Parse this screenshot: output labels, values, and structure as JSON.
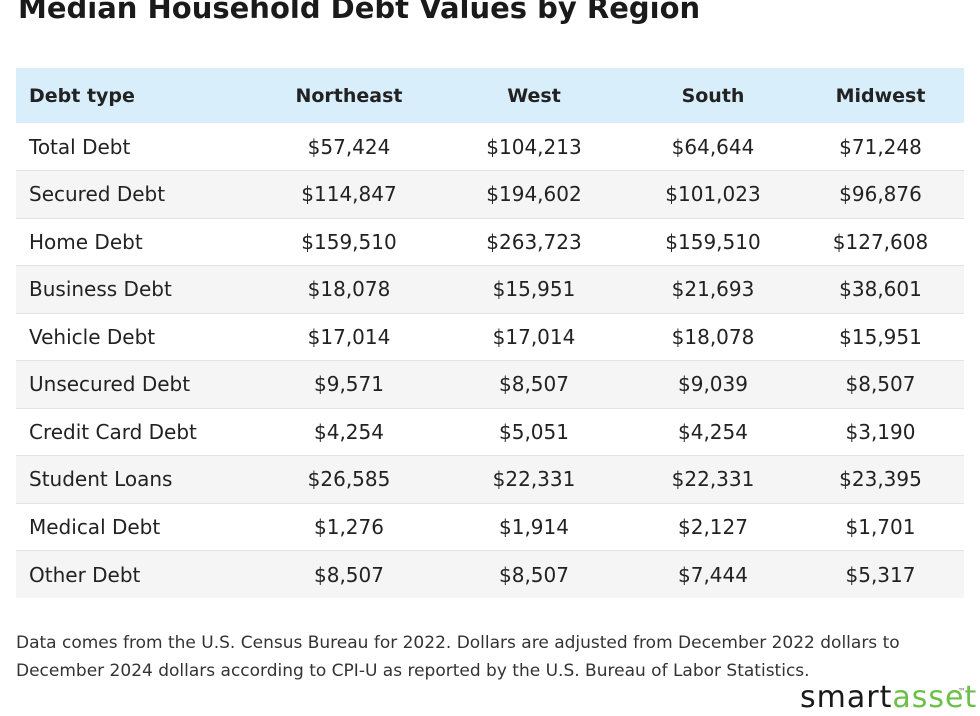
{
  "chart_data": {
    "type": "table",
    "title": "Median Household Debt Values by Region",
    "columns": [
      "Debt type",
      "Northeast",
      "West",
      "South",
      "Midwest"
    ],
    "rows": [
      [
        "Total Debt",
        "$57,424",
        "$104,213",
        "$64,644",
        "$71,248"
      ],
      [
        "Secured Debt",
        "$114,847",
        "$194,602",
        "$101,023",
        "$96,876"
      ],
      [
        "Home Debt",
        "$159,510",
        "$263,723",
        "$159,510",
        "$127,608"
      ],
      [
        "Business Debt",
        "$18,078",
        "$15,951",
        "$21,693",
        "$38,601"
      ],
      [
        "Vehicle Debt",
        "$17,014",
        "$17,014",
        "$18,078",
        "$15,951"
      ],
      [
        "Unsecured Debt",
        "$9,571",
        "$8,507",
        "$9,039",
        "$8,507"
      ],
      [
        "Credit Card Debt",
        "$4,254",
        "$5,051",
        "$4,254",
        "$3,190"
      ],
      [
        "Student Loans",
        "$26,585",
        "$22,331",
        "$22,331",
        "$23,395"
      ],
      [
        "Medical Debt",
        "$1,276",
        "$1,914",
        "$2,127",
        "$1,701"
      ],
      [
        "Other Debt",
        "$8,507",
        "$8,507",
        "$7,444",
        "$5,317"
      ]
    ],
    "header_color": "#d8eefa",
    "stripe_color": "#f5f5f5"
  },
  "footnote": "Data comes from the U.S. Census Bureau for 2022. Dollars are adjusted from December 2022 dollars to December 2024 dollars according to CPI-U as reported by the U.S. Bureau of Labor Statistics.",
  "brand": {
    "part1": "smart",
    "part2": "asset",
    "trademark": "™",
    "accent_color": "#6cc04a"
  }
}
